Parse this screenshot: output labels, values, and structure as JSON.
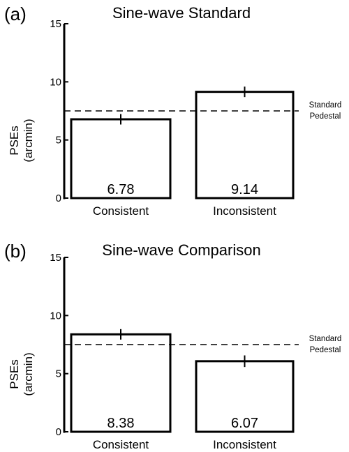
{
  "chart_data": [
    {
      "type": "bar",
      "panel_label": "(a)",
      "title": "Sine-wave Standard",
      "ylabel_line1": "PSEs",
      "ylabel_line2": "(arcmin)",
      "ylim": [
        0,
        15
      ],
      "yticks": [
        0,
        5,
        10,
        15
      ],
      "categories": [
        "Consistent",
        "Inconsistent"
      ],
      "values": [
        6.78,
        9.14
      ],
      "value_labels": [
        "6.78",
        "9.14"
      ],
      "errors": [
        0.45,
        0.45
      ],
      "reference": {
        "value": 7.5,
        "label_line1": "Standard",
        "label_line2": "Pedestal",
        "style": "dashed"
      },
      "grid": false
    },
    {
      "type": "bar",
      "panel_label": "(b)",
      "title": "Sine-wave Comparison",
      "ylabel_line1": "PSEs",
      "ylabel_line2": "(arcmin)",
      "ylim": [
        0,
        15
      ],
      "yticks": [
        0,
        5,
        10,
        15
      ],
      "categories": [
        "Consistent",
        "Inconsistent"
      ],
      "values": [
        8.38,
        6.07
      ],
      "value_labels": [
        "8.38",
        "6.07"
      ],
      "errors": [
        0.45,
        0.5
      ],
      "reference": {
        "value": 7.5,
        "label_line1": "Standard",
        "label_line2": "Pedestal",
        "style": "dashed"
      },
      "grid": false
    }
  ]
}
